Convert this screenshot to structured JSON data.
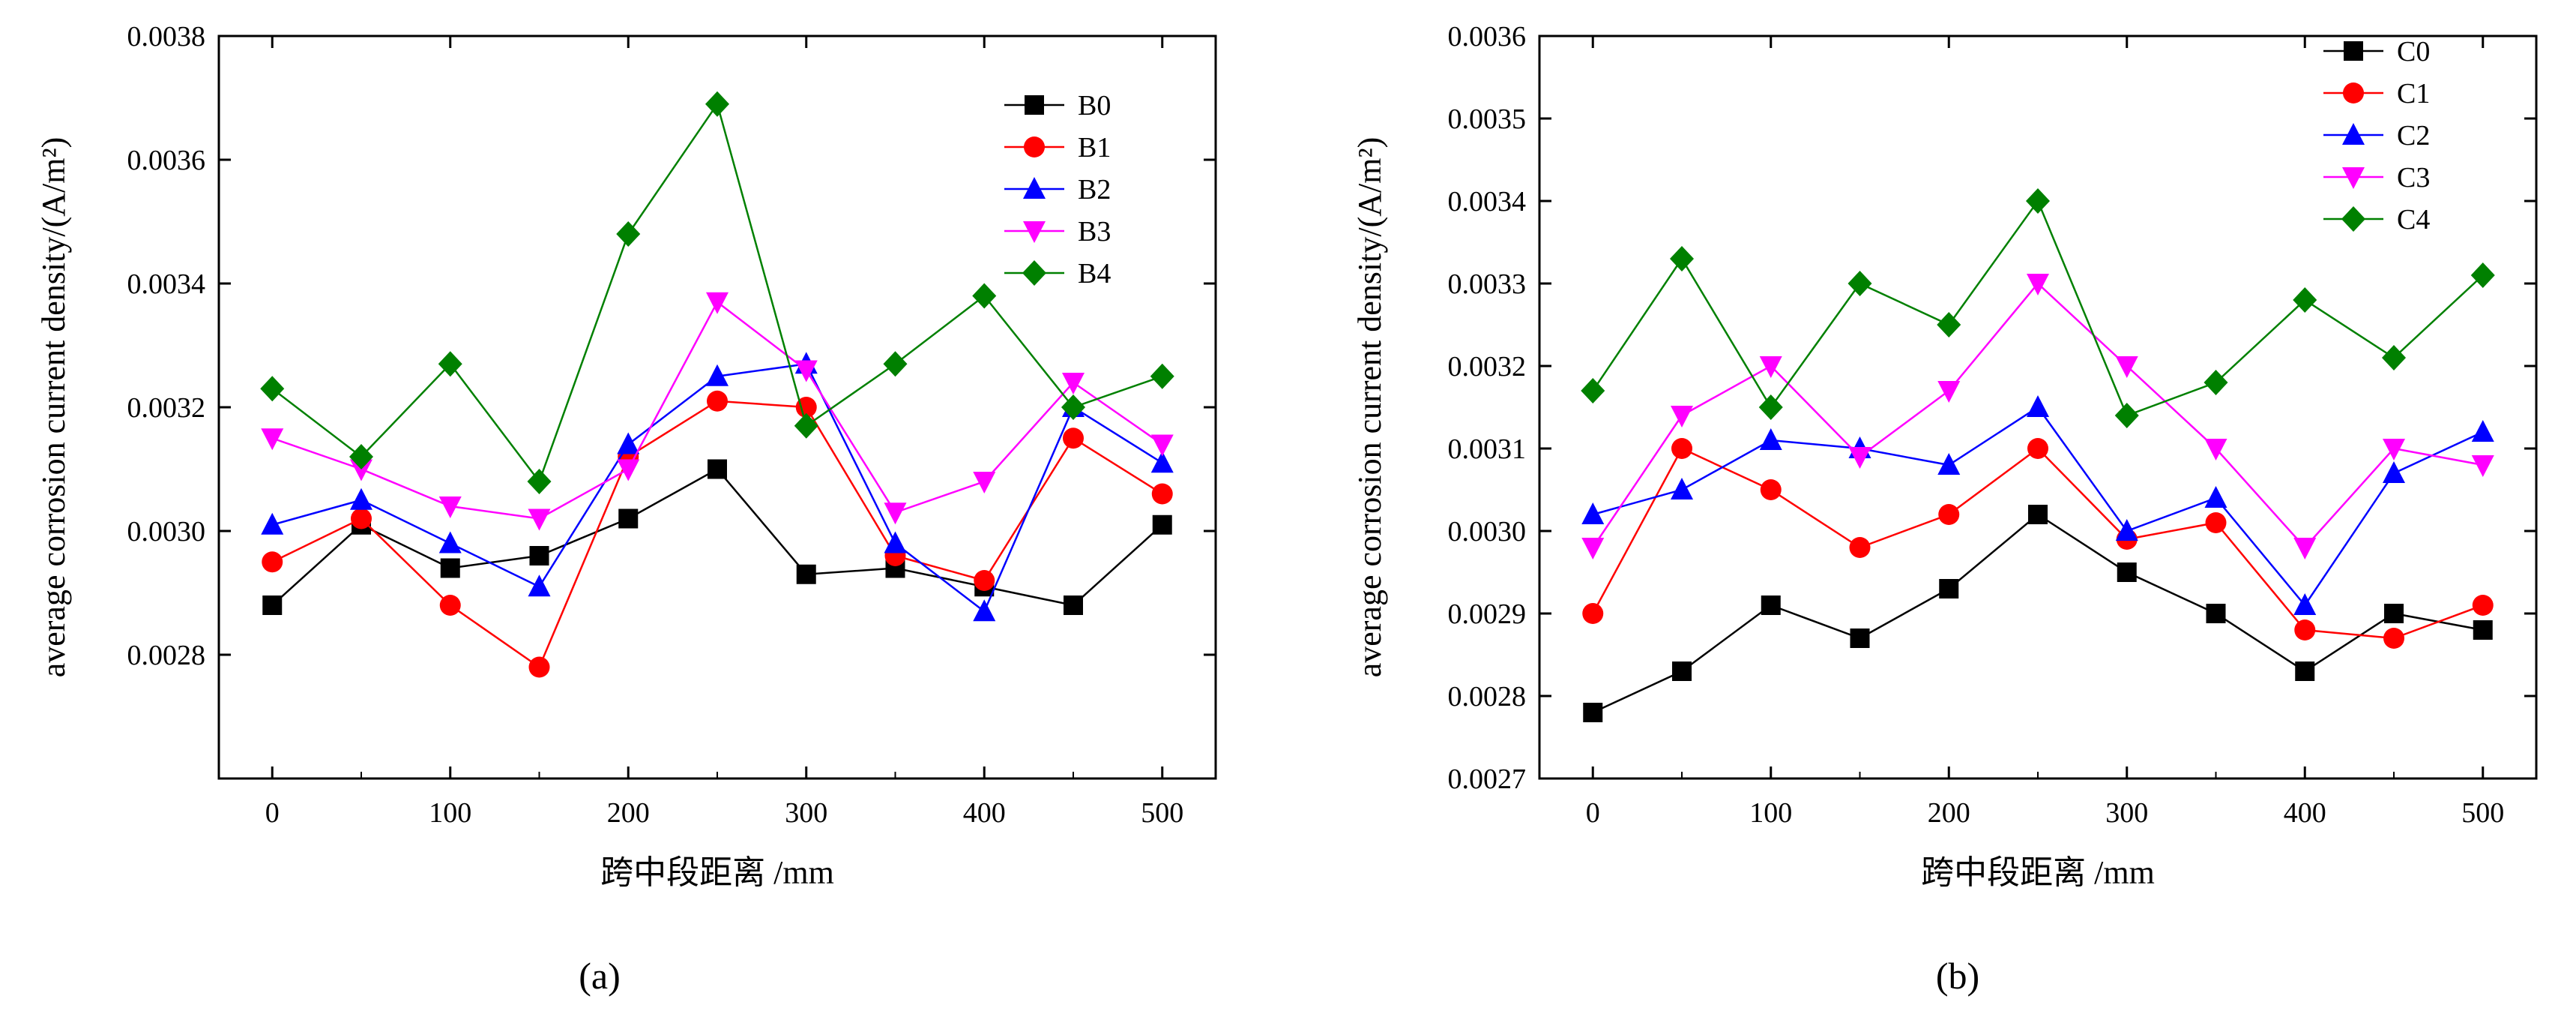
{
  "chart_data": [
    {
      "type": "line",
      "panel_label": "(a)",
      "xlabel": "跨中段距离 /mm",
      "ylabel": "average corrosion current density/(A/m²)",
      "x": [
        0,
        50,
        100,
        150,
        200,
        250,
        300,
        350,
        400,
        450,
        500
      ],
      "xticks": [
        0,
        100,
        200,
        300,
        400,
        500
      ],
      "xtick_labels": [
        "0",
        "100",
        "200",
        "300",
        "400",
        "500"
      ],
      "yticks": [
        0.0028,
        0.003,
        0.0032,
        0.0034,
        0.0036,
        0.0038
      ],
      "ytick_labels": [
        "0.0028",
        "0.0030",
        "0.0032",
        "0.0034",
        "0.0036",
        "0.0038"
      ],
      "xlim": [
        -30,
        530
      ],
      "ylim": [
        0.0026,
        0.0038
      ],
      "legend_position": "top-right",
      "series": [
        {
          "name": "B0",
          "color": "#000000",
          "marker": "square",
          "values": [
            0.00288,
            0.00301,
            0.00294,
            0.00296,
            0.00302,
            0.0031,
            0.00293,
            0.00294,
            0.00291,
            0.00288,
            0.00301
          ]
        },
        {
          "name": "B1",
          "color": "#ff0000",
          "marker": "circle",
          "values": [
            0.00295,
            0.00302,
            0.00288,
            0.00278,
            0.00312,
            0.00321,
            0.0032,
            0.00296,
            0.00292,
            0.00315,
            0.00306
          ]
        },
        {
          "name": "B2",
          "color": "#0000ff",
          "marker": "triangle-up",
          "values": [
            0.00301,
            0.00305,
            0.00298,
            0.00291,
            0.00314,
            0.00325,
            0.00327,
            0.00298,
            0.00287,
            0.0032,
            0.00311
          ]
        },
        {
          "name": "B3",
          "color": "#ff00ff",
          "marker": "triangle-down",
          "values": [
            0.00315,
            0.0031,
            0.00304,
            0.00302,
            0.0031,
            0.00337,
            0.00326,
            0.00303,
            0.00308,
            0.00324,
            0.00314
          ]
        },
        {
          "name": "B4",
          "color": "#008000",
          "marker": "diamond",
          "values": [
            0.00323,
            0.00312,
            0.00327,
            0.00308,
            0.00348,
            0.00369,
            0.00317,
            0.00327,
            0.00338,
            0.0032,
            0.00325
          ]
        }
      ]
    },
    {
      "type": "line",
      "panel_label": "(b)",
      "xlabel": "跨中段距离 /mm",
      "ylabel": "average corrosion current density/(A/m²)",
      "x": [
        0,
        50,
        100,
        150,
        200,
        250,
        300,
        350,
        400,
        450,
        500
      ],
      "xticks": [
        0,
        100,
        200,
        300,
        400,
        500
      ],
      "xtick_labels": [
        "0",
        "100",
        "200",
        "300",
        "400",
        "500"
      ],
      "yticks": [
        0.0027,
        0.0028,
        0.0029,
        0.003,
        0.0031,
        0.0032,
        0.0033,
        0.0034,
        0.0035,
        0.0036
      ],
      "ytick_labels": [
        "0.0027",
        "0.0028",
        "0.0029",
        "0.0030",
        "0.0031",
        "0.0032",
        "0.0033",
        "0.0034",
        "0.0035",
        "0.0036"
      ],
      "xlim": [
        -30,
        530
      ],
      "ylim": [
        0.0027,
        0.0036
      ],
      "legend_position": "top-right",
      "series": [
        {
          "name": "C0",
          "color": "#000000",
          "marker": "square",
          "values": [
            0.00278,
            0.00283,
            0.00291,
            0.00287,
            0.00293,
            0.00302,
            0.00295,
            0.0029,
            0.00283,
            0.0029,
            0.00288
          ]
        },
        {
          "name": "C1",
          "color": "#ff0000",
          "marker": "circle",
          "values": [
            0.0029,
            0.0031,
            0.00305,
            0.00298,
            0.00302,
            0.0031,
            0.00299,
            0.00301,
            0.00288,
            0.00287,
            0.00291
          ]
        },
        {
          "name": "C2",
          "color": "#0000ff",
          "marker": "triangle-up",
          "values": [
            0.00302,
            0.00305,
            0.00311,
            0.0031,
            0.00308,
            0.00315,
            0.003,
            0.00304,
            0.00291,
            0.00307,
            0.00312
          ]
        },
        {
          "name": "C3",
          "color": "#ff00ff",
          "marker": "triangle-down",
          "values": [
            0.00298,
            0.00314,
            0.0032,
            0.00309,
            0.00317,
            0.0033,
            0.0032,
            0.0031,
            0.00298,
            0.0031,
            0.00308
          ]
        },
        {
          "name": "C4",
          "color": "#008000",
          "marker": "diamond",
          "values": [
            0.00317,
            0.00333,
            0.00315,
            0.0033,
            0.00325,
            0.0034,
            0.00314,
            0.00318,
            0.00328,
            0.00321,
            0.00331
          ]
        }
      ]
    }
  ]
}
